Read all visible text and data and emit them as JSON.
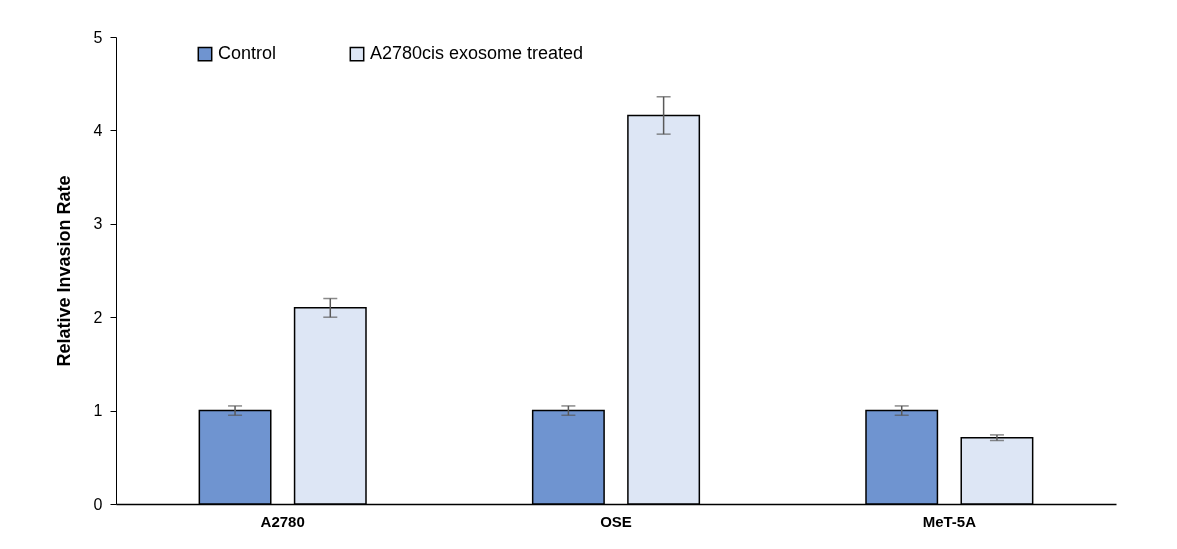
{
  "chart_data": {
    "type": "bar",
    "ylabel": "Relative Invasion Rate",
    "categories": [
      "A2780",
      "OSE",
      "MeT-5A"
    ],
    "series": [
      {
        "name": "Control",
        "color": "#6f94d0",
        "values": [
          1.0,
          1.0,
          1.0
        ],
        "errors": [
          0.05,
          0.05,
          0.05
        ]
      },
      {
        "name": "A2780cis exosome treated",
        "color": "#dde6f5",
        "values": [
          2.1,
          4.16,
          0.71
        ],
        "errors": [
          0.1,
          0.2,
          0.03
        ]
      }
    ],
    "ylim": [
      0,
      5
    ],
    "yticks": [
      0,
      1,
      2,
      3,
      4,
      5
    ],
    "grid": false,
    "legend": "top left"
  }
}
